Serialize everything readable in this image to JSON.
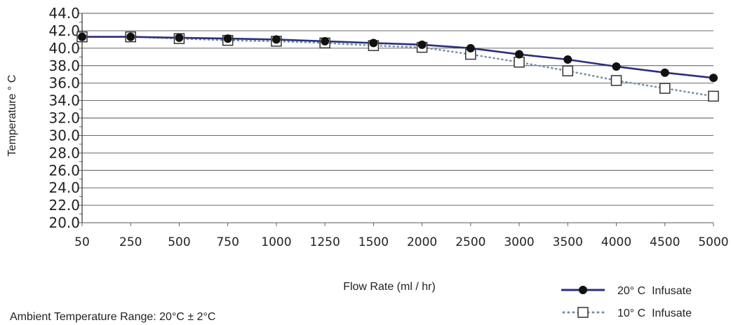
{
  "chart_data": {
    "type": "line",
    "title": "",
    "xlabel": "Flow Rate (ml / hr)",
    "ylabel": "Temperature ° C",
    "categories": [
      "50",
      "250",
      "500",
      "750",
      "1000",
      "1250",
      "1500",
      "2000",
      "2500",
      "3000",
      "3500",
      "4000",
      "4500",
      "5000"
    ],
    "y_ticks": [
      "20.0",
      "22.0",
      "24.0",
      "26.0",
      "28.0",
      "30.0",
      "32.0",
      "34.0",
      "36.0",
      "38.0",
      "40.0",
      "42.0",
      "44.0"
    ],
    "ylim": [
      20,
      44
    ],
    "grid": true,
    "legend_position": "bottom-right",
    "series": [
      {
        "name": "20° C  Infusate",
        "color": "#2b2f7e",
        "marker": "filled-circle",
        "line_style": "solid",
        "values": [
          41.3,
          41.3,
          41.2,
          41.1,
          41.0,
          40.8,
          40.6,
          40.4,
          40.0,
          39.3,
          38.7,
          37.9,
          37.2,
          36.6
        ]
      },
      {
        "name": "10° C  Infusate",
        "color": "#6f93a6",
        "marker": "open-square",
        "line_style": "dotted",
        "values": [
          41.3,
          41.3,
          41.1,
          40.9,
          40.8,
          40.6,
          40.3,
          40.1,
          39.3,
          38.4,
          37.4,
          36.3,
          35.4,
          34.5
        ]
      }
    ],
    "annotation": "Ambient Temperature Range: 20°C ± 2°C"
  }
}
